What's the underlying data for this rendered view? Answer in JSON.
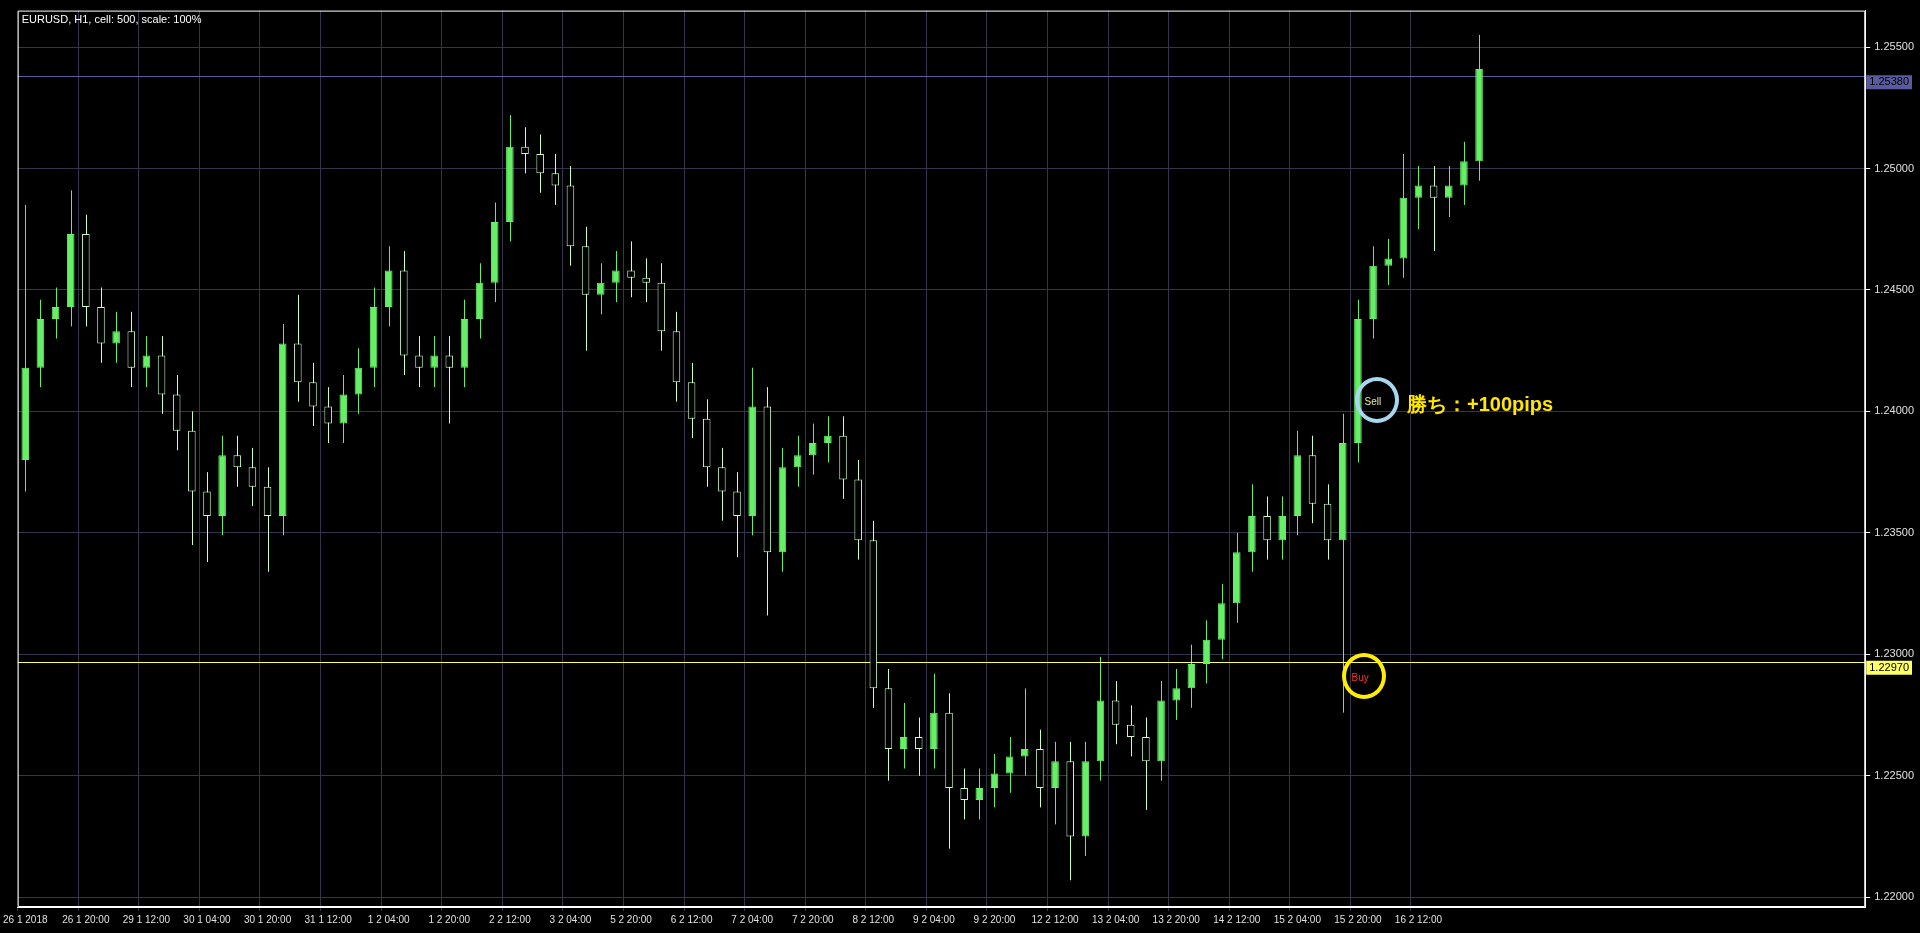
{
  "chart_data": {
    "type": "candlestick",
    "title": "EURUSD, H1, cell: 500, scale: 100%",
    "categories": [
      "26 1 2018",
      null,
      null,
      null,
      "26 1 20:00",
      null,
      null,
      null,
      "29 1 12:00",
      null,
      null,
      null,
      "30 1 04:00",
      null,
      null,
      null,
      "30 1 20:00",
      null,
      null,
      null,
      "31 1 12:00",
      null,
      null,
      null,
      "1 2 04:00",
      null,
      null,
      null,
      "1 2 20:00",
      null,
      null,
      null,
      "2 2 12:00",
      null,
      null,
      null,
      "3 2 04:00",
      null,
      null,
      null,
      "5 2 20:00",
      null,
      null,
      null,
      "6 2 12:00",
      null,
      null,
      null,
      "7 2 04:00",
      null,
      null,
      null,
      "7 2 20:00",
      null,
      null,
      null,
      "8 2 12:00",
      null,
      null,
      null,
      "9 2 04:00",
      null,
      null,
      null,
      "9 2 20:00",
      null,
      null,
      null,
      "12 2 12:00",
      null,
      null,
      null,
      "13 2 04:00",
      null,
      null,
      null,
      "13 2 20:00",
      null,
      null,
      null,
      "14 2 12:00",
      null,
      null,
      null,
      "15 2 04:00",
      null,
      null,
      null,
      "15 2 20:00",
      null,
      null,
      null,
      "16 2 12:00",
      null,
      null,
      null,
      null,
      null,
      null,
      null,
      null,
      null,
      null,
      null,
      null,
      null,
      null,
      null,
      null,
      null,
      null,
      null,
      null,
      null,
      null,
      null,
      null,
      null,
      null,
      null,
      null,
      null
    ],
    "ohlc": [
      [
        1.238,
        1.2485,
        1.2367,
        1.2418
      ],
      [
        1.2418,
        1.2446,
        1.241,
        1.2438
      ],
      [
        1.2438,
        1.2451,
        1.243,
        1.2443
      ],
      [
        1.2443,
        1.2491,
        1.2435,
        1.2473
      ],
      [
        1.2473,
        1.2481,
        1.2435,
        1.2443
      ],
      [
        1.2443,
        1.2451,
        1.242,
        1.2428
      ],
      [
        1.2428,
        1.2441,
        1.242,
        1.2433
      ],
      [
        1.2433,
        1.2441,
        1.241,
        1.2418
      ],
      [
        1.2418,
        1.2431,
        1.241,
        1.2423
      ],
      [
        1.2423,
        1.2431,
        1.2399,
        1.2407
      ],
      [
        1.2407,
        1.2415,
        1.2384,
        1.2392
      ],
      [
        1.2392,
        1.24,
        1.2345,
        1.2367
      ],
      [
        1.2367,
        1.2375,
        1.2338,
        1.2357
      ],
      [
        1.2357,
        1.239,
        1.2349,
        1.2382
      ],
      [
        1.2382,
        1.239,
        1.2369,
        1.2377
      ],
      [
        1.2377,
        1.2385,
        1.2361,
        1.2369
      ],
      [
        1.2369,
        1.2377,
        1.2334,
        1.2357
      ],
      [
        1.2357,
        1.2436,
        1.2349,
        1.2428
      ],
      [
        1.2428,
        1.2448,
        1.2404,
        1.2412
      ],
      [
        1.2412,
        1.242,
        1.2394,
        1.2402
      ],
      [
        1.2402,
        1.241,
        1.2387,
        1.2395
      ],
      [
        1.2395,
        1.2415,
        1.2387,
        1.2407
      ],
      [
        1.2407,
        1.2426,
        1.2399,
        1.2418
      ],
      [
        1.2418,
        1.2451,
        1.241,
        1.2443
      ],
      [
        1.2443,
        1.2468,
        1.2435,
        1.2458
      ],
      [
        1.2458,
        1.2466,
        1.2415,
        1.2423
      ],
      [
        1.2423,
        1.2431,
        1.241,
        1.2418
      ],
      [
        1.2418,
        1.2431,
        1.241,
        1.2423
      ],
      [
        1.2423,
        1.2431,
        1.2395,
        1.2418
      ],
      [
        1.2418,
        1.2446,
        1.241,
        1.2438
      ],
      [
        1.2438,
        1.2461,
        1.243,
        1.2453
      ],
      [
        1.2453,
        1.2486,
        1.2445,
        1.2478
      ],
      [
        1.2478,
        1.2522,
        1.247,
        1.2509
      ],
      [
        1.2509,
        1.2517,
        1.2498,
        1.2506
      ],
      [
        1.2506,
        1.2514,
        1.249,
        1.2498
      ],
      [
        1.2498,
        1.2506,
        1.2485,
        1.2493
      ],
      [
        1.2493,
        1.2501,
        1.246,
        1.2468
      ],
      [
        1.2468,
        1.2476,
        1.2425,
        1.2448
      ],
      [
        1.2448,
        1.2461,
        1.244,
        1.2453
      ],
      [
        1.2453,
        1.2466,
        1.2445,
        1.2458
      ],
      [
        1.2458,
        1.247,
        1.2447,
        1.2455
      ],
      [
        1.2455,
        1.2463,
        1.2445,
        1.2453
      ],
      [
        1.2453,
        1.2461,
        1.2425,
        1.2433
      ],
      [
        1.2433,
        1.2441,
        1.2404,
        1.2412
      ],
      [
        1.2412,
        1.242,
        1.2389,
        1.2397
      ],
      [
        1.2397,
        1.2405,
        1.2369,
        1.2377
      ],
      [
        1.2377,
        1.2385,
        1.2355,
        1.2367
      ],
      [
        1.2367,
        1.2375,
        1.234,
        1.2357
      ],
      [
        1.2357,
        1.2418,
        1.2349,
        1.2402
      ],
      [
        1.2402,
        1.241,
        1.2316,
        1.2342
      ],
      [
        1.2342,
        1.2385,
        1.2334,
        1.2377
      ],
      [
        1.2377,
        1.239,
        1.2369,
        1.2382
      ],
      [
        1.2382,
        1.2395,
        1.2374,
        1.2387
      ],
      [
        1.2387,
        1.2398,
        1.2379,
        1.239
      ],
      [
        1.239,
        1.2398,
        1.2364,
        1.2372
      ],
      [
        1.2372,
        1.238,
        1.2339,
        1.2347
      ],
      [
        1.2347,
        1.2355,
        1.2278,
        1.2286
      ],
      [
        1.2286,
        1.2294,
        1.2248,
        1.2261
      ],
      [
        1.2261,
        1.228,
        1.2253,
        1.2266
      ],
      [
        1.2266,
        1.2274,
        1.225,
        1.2261
      ],
      [
        1.2261,
        1.2292,
        1.2253,
        1.2276
      ],
      [
        1.2276,
        1.2284,
        1.222,
        1.2245
      ],
      [
        1.2245,
        1.2253,
        1.2232,
        1.224
      ],
      [
        1.224,
        1.2253,
        1.2232,
        1.2245
      ],
      [
        1.2245,
        1.2259,
        1.2237,
        1.2251
      ],
      [
        1.2251,
        1.2266,
        1.2243,
        1.2258
      ],
      [
        1.2258,
        1.2286,
        1.225,
        1.2261
      ],
      [
        1.2261,
        1.2269,
        1.2237,
        1.2245
      ],
      [
        1.2245,
        1.2264,
        1.223,
        1.2256
      ],
      [
        1.2256,
        1.2264,
        1.2207,
        1.2225
      ],
      [
        1.2225,
        1.2264,
        1.2217,
        1.2256
      ],
      [
        1.2256,
        1.2299,
        1.2248,
        1.2281
      ],
      [
        1.2281,
        1.2289,
        1.2263,
        1.2271
      ],
      [
        1.2271,
        1.2279,
        1.2258,
        1.2266
      ],
      [
        1.2266,
        1.2274,
        1.2236,
        1.2256
      ],
      [
        1.2256,
        1.2289,
        1.2248,
        1.2281
      ],
      [
        1.2281,
        1.2294,
        1.2273,
        1.2286
      ],
      [
        1.2286,
        1.2304,
        1.2278,
        1.2296
      ],
      [
        1.2296,
        1.2314,
        1.2288,
        1.2306
      ],
      [
        1.2306,
        1.2329,
        1.2298,
        1.2321
      ],
      [
        1.2321,
        1.235,
        1.2313,
        1.2342
      ],
      [
        1.2342,
        1.237,
        1.2334,
        1.2357
      ],
      [
        1.2357,
        1.2365,
        1.2339,
        1.2347
      ],
      [
        1.2347,
        1.2365,
        1.2339,
        1.2357
      ],
      [
        1.2357,
        1.2392,
        1.2349,
        1.2382
      ],
      [
        1.2382,
        1.239,
        1.2354,
        1.2362
      ],
      [
        1.2362,
        1.237,
        1.2339,
        1.2347
      ],
      [
        1.2347,
        1.2399,
        1.2276,
        1.2387
      ],
      [
        1.2387,
        1.2446,
        1.2379,
        1.2438
      ],
      [
        1.2438,
        1.2468,
        1.243,
        1.246
      ],
      [
        1.246,
        1.2471,
        1.2452,
        1.2463
      ],
      [
        1.2463,
        1.2506,
        1.2455,
        1.2488
      ],
      [
        1.2488,
        1.2501,
        1.2475,
        1.2493
      ],
      [
        1.2493,
        1.2501,
        1.2466,
        1.2488
      ],
      [
        1.2488,
        1.2501,
        1.248,
        1.2493
      ],
      [
        1.2493,
        1.2511,
        1.2485,
        1.2503
      ],
      [
        1.2503,
        1.2555,
        1.2495,
        1.2541
      ],
      null,
      null,
      null,
      null,
      null,
      null,
      null,
      null,
      null,
      null,
      null,
      null,
      null,
      null,
      null,
      null,
      null,
      null,
      null,
      null,
      null,
      null,
      null,
      null,
      null
    ],
    "colors": [
      "#66ee66",
      "#66ee66",
      "#66ee66",
      "#66ee66",
      "#c8ffc8",
      "#c8ffc8",
      "#66ee66",
      "#c8ffc8",
      "#66ee66",
      "#c8ffc8",
      "#c8ffc8",
      "#c8ffc8",
      "#c8ffc8",
      "#66ee66",
      "#c8ffc8",
      "#c8ffc8",
      "#c8ffc8",
      "#66ee66",
      "#c8ffc8",
      "#c8ffc8",
      "#c8ffc8",
      "#66ee66",
      "#66ee66",
      "#66ee66",
      "#66ee66",
      "#c8ffc8",
      "#c8ffc8",
      "#66ee66",
      "#c8ffc8",
      "#66ee66",
      "#66ee66",
      "#66ee66",
      "#66ee66",
      "#c8ffc8",
      "#c8ffc8",
      "#c8ffc8",
      "#c8ffc8",
      "#c8ffc8",
      "#66ee66",
      "#66ee66",
      "#c8ffc8",
      "#c8ffc8",
      "#c8ffc8",
      "#c8ffc8",
      "#c8ffc8",
      "#c8ffc8",
      "#c8ffc8",
      "#c8ffc8",
      "#66ee66",
      "#c8ffc8",
      "#66ee66",
      "#66ee66",
      "#66ee66",
      "#66ee66",
      "#c8ffc8",
      "#c8ffc8",
      "#c8ffc8",
      "#c8ffc8",
      "#66ee66",
      "#c8ffc8",
      "#66ee66",
      "#c8ffc8",
      "#c8ffc8",
      "#66ee66",
      "#66ee66",
      "#66ee66",
      "#66ee66",
      "#c8ffc8",
      "#66ee66",
      "#c8ffc8",
      "#66ee66",
      "#66ee66",
      "#c8ffc8",
      "#c8ffc8",
      "#c8ffc8",
      "#66ee66",
      "#66ee66",
      "#66ee66",
      "#66ee66",
      "#66ee66",
      "#66ee66",
      "#66ee66",
      "#c8ffc8",
      "#66ee66",
      "#66ee66",
      "#c8ffc8",
      "#c8ffc8",
      "#66ee66",
      "#66ee66",
      "#66ee66",
      "#66ee66",
      "#66ee66",
      "#66ee66",
      "#c8ffc8",
      "#66ee66",
      "#66ee66",
      "#66ee66",
      null,
      null,
      null,
      null,
      null,
      null,
      null,
      null,
      null,
      null,
      null,
      null,
      null,
      null,
      null,
      null,
      null,
      null,
      null,
      null,
      null,
      null,
      null,
      null,
      null
    ],
    "ylim": [
      1.2196,
      1.2565
    ],
    "yticks": [
      {
        "value": 1.22,
        "label": "1.22000"
      },
      {
        "value": 1.225,
        "label": "1.22500"
      },
      {
        "value": 1.23,
        "label": "1.23000"
      },
      {
        "value": 1.235,
        "label": "1.23500"
      },
      {
        "value": 1.24,
        "label": "1.24000"
      },
      {
        "value": 1.245,
        "label": "1.24500"
      },
      {
        "value": 1.25,
        "label": "1.25000"
      },
      {
        "value": 1.255,
        "label": "1.25500"
      }
    ],
    "grid": true,
    "legend": false,
    "ref_lines": [
      {
        "axis": "y",
        "value": 1.2538,
        "label": "1.25380",
        "color": "#5a5aa0"
      },
      {
        "axis": "y",
        "value": 1.2297,
        "label": "1.22970",
        "color": "#ffff66"
      }
    ],
    "annotations": [
      "Sell",
      "Buy",
      "勝ち：+100pips"
    ]
  }
}
